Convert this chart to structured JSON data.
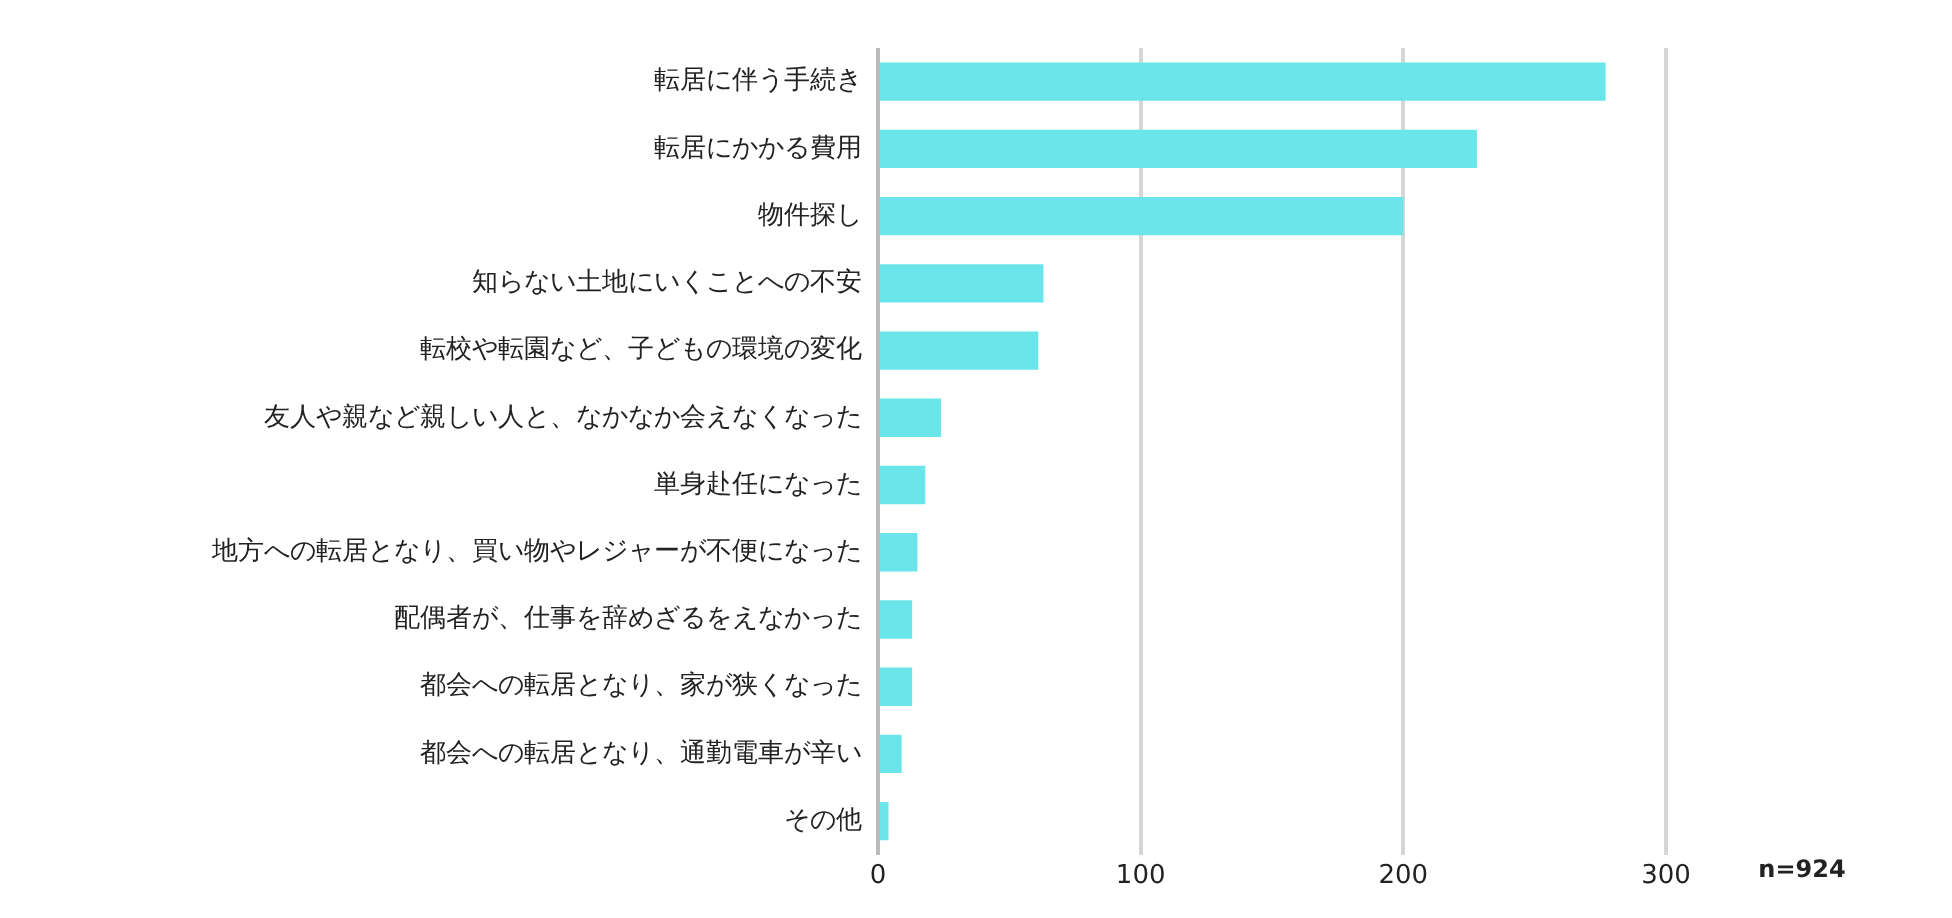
{
  "chart_data": {
    "type": "bar",
    "orientation": "horizontal",
    "categories": [
      "転居に伴う手続き",
      "転居にかかる費用",
      "物件探し",
      "知らない土地にいくことへの不安",
      "転校や転園など、子どもの環境の変化",
      "友人や親など親しい人と、なかなか会えなくなった",
      "単身赴任になった",
      "地方への転居となり、買い物やレジャーが不便になった",
      "配偶者が、仕事を辞めざるをえなかった",
      "都会への転居となり、家が狭くなった",
      "都会への転居となり、通勤電車が辛い",
      "その他"
    ],
    "values": [
      277,
      228,
      200,
      63,
      61,
      24,
      18,
      15,
      13,
      13,
      9,
      4
    ],
    "color": "#6ae5e9",
    "xlim": [
      0,
      300
    ],
    "xticks": [
      0,
      100,
      200,
      300
    ],
    "grid": "x",
    "legend": false,
    "annotations": [
      "n=924"
    ]
  }
}
